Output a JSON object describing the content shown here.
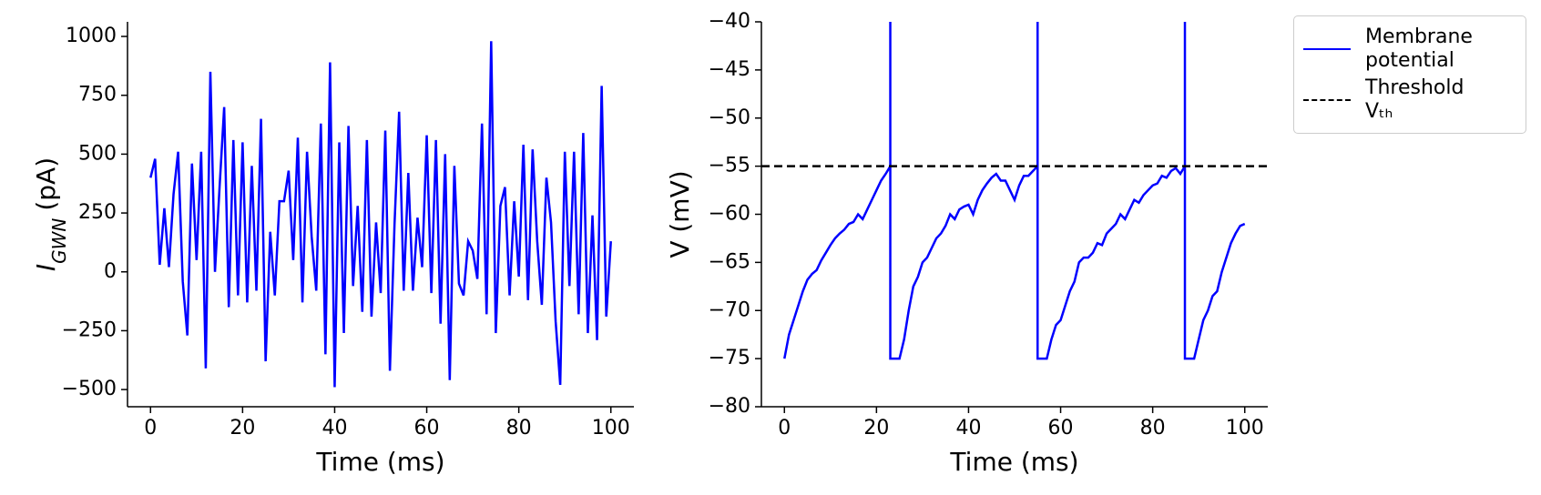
{
  "chart_data": [
    {
      "type": "line",
      "xlabel": "Time (ms)",
      "ylabel": [
        "I",
        "GWN",
        "(pA)"
      ],
      "xlim": [
        -5,
        105
      ],
      "ylim": [
        -573,
        1062
      ],
      "xticks": [
        0,
        20,
        40,
        60,
        80,
        100
      ],
      "yticks": [
        {
          "value": -500,
          "label": "−500"
        },
        {
          "value": -250,
          "label": "−250"
        },
        0,
        250,
        500,
        750,
        1000
      ],
      "x": [
        0,
        1,
        2,
        3,
        4,
        5,
        6,
        7,
        8,
        9,
        10,
        11,
        12,
        13,
        14,
        15,
        16,
        17,
        18,
        19,
        20,
        21,
        22,
        23,
        24,
        25,
        26,
        27,
        28,
        29,
        30,
        31,
        32,
        33,
        34,
        35,
        36,
        37,
        38,
        39,
        40,
        41,
        42,
        43,
        44,
        45,
        46,
        47,
        48,
        49,
        50,
        51,
        52,
        53,
        54,
        55,
        56,
        57,
        58,
        59,
        60,
        61,
        62,
        63,
        64,
        65,
        66,
        67,
        68,
        69,
        70,
        71,
        72,
        73,
        74,
        75,
        76,
        77,
        78,
        79,
        80,
        81,
        82,
        83,
        84,
        85,
        86,
        87,
        88,
        89,
        90,
        91,
        92,
        93,
        94,
        95,
        96,
        97,
        98,
        99,
        100
      ],
      "series": [
        {
          "color": "#0000ff",
          "values": [
            400,
            480,
            30,
            270,
            20,
            330,
            510,
            -40,
            -270,
            460,
            50,
            510,
            -410,
            850,
            0,
            360,
            700,
            -150,
            560,
            -100,
            550,
            -130,
            450,
            -80,
            650,
            -380,
            170,
            -100,
            300,
            300,
            430,
            50,
            570,
            -130,
            510,
            150,
            -80,
            630,
            -350,
            890,
            -490,
            550,
            -260,
            620,
            -60,
            280,
            -170,
            560,
            -190,
            210,
            -90,
            600,
            -420,
            200,
            680,
            -80,
            420,
            -80,
            230,
            20,
            580,
            -90,
            560,
            -220,
            500,
            -460,
            450,
            -50,
            -100,
            130,
            90,
            -30,
            630,
            -180,
            980,
            -260,
            280,
            360,
            -100,
            300,
            -20,
            540,
            -120,
            520,
            130,
            -140,
            400,
            210,
            -210,
            -480,
            510,
            -60,
            510,
            -180,
            590,
            -260,
            240,
            -290,
            790,
            -190,
            130
          ]
        }
      ]
    },
    {
      "type": "line",
      "xlabel": "Time (ms)",
      "ylabel": [
        "V (mV)"
      ],
      "xlim": [
        -5,
        105
      ],
      "ylim": [
        -80,
        -40
      ],
      "xticks": [
        0,
        20,
        40,
        60,
        80,
        100
      ],
      "yticks": [
        {
          "value": -80,
          "label": "−80"
        },
        {
          "value": -75,
          "label": "−75"
        },
        {
          "value": -70,
          "label": "−70"
        },
        {
          "value": -65,
          "label": "−65"
        },
        {
          "value": -60,
          "label": "−60"
        },
        {
          "value": -55,
          "label": "−55"
        },
        {
          "value": -50,
          "label": "−50"
        },
        {
          "value": -45,
          "label": "−45"
        },
        {
          "value": -40,
          "label": "−40"
        }
      ],
      "legend": "outside upper right",
      "series": [
        {
          "name": "Membrane potential",
          "color": "#0000ff",
          "dash": "solid",
          "x": [
            0,
            1,
            2,
            3,
            4,
            5,
            6,
            7,
            8,
            9,
            10,
            11,
            12,
            13,
            14,
            15,
            16,
            17,
            18,
            19,
            20,
            21,
            22,
            23,
            23,
            23,
            24,
            25,
            26,
            27,
            28,
            29,
            30,
            31,
            32,
            33,
            34,
            35,
            36,
            37,
            38,
            39,
            40,
            41,
            42,
            43,
            44,
            45,
            46,
            47,
            48,
            49,
            50,
            51,
            52,
            53,
            54,
            55,
            55,
            55,
            56,
            57,
            58,
            59,
            60,
            61,
            62,
            63,
            64,
            65,
            66,
            67,
            68,
            69,
            70,
            71,
            72,
            73,
            74,
            75,
            76,
            77,
            78,
            79,
            80,
            81,
            82,
            83,
            84,
            85,
            86,
            87,
            87,
            87,
            88,
            89,
            90,
            91,
            92,
            93,
            94,
            95,
            96,
            97,
            98,
            99,
            100
          ],
          "values": [
            -75,
            -72.5,
            -71,
            -69.5,
            -68,
            -66.8,
            -66.2,
            -65.8,
            -64.8,
            -64,
            -63.2,
            -62.5,
            -62,
            -61.6,
            -61,
            -60.8,
            -60,
            -60.5,
            -59.5,
            -58.5,
            -57.5,
            -56.5,
            -55.8,
            -55,
            -40,
            -75,
            -75,
            -75,
            -73,
            -70,
            -67.5,
            -66.5,
            -65,
            -64.5,
            -63.5,
            -62.5,
            -62,
            -61.2,
            -60,
            -60.5,
            -59.5,
            -59.2,
            -59,
            -60,
            -58.5,
            -57.5,
            -56.8,
            -56.2,
            -55.8,
            -56.5,
            -56.5,
            -57.5,
            -58.5,
            -57,
            -56,
            -56,
            -55.5,
            -55,
            -40,
            -75,
            -75,
            -75,
            -73,
            -71.5,
            -71,
            -69.5,
            -68,
            -67,
            -65,
            -64.5,
            -64.5,
            -64,
            -63,
            -63.2,
            -62,
            -61.5,
            -61,
            -60,
            -60.5,
            -59.5,
            -58.5,
            -58.8,
            -58,
            -57.5,
            -57,
            -56.8,
            -56,
            -56.2,
            -55.5,
            -55.2,
            -55.8,
            -55,
            -40,
            -75,
            -75,
            -75,
            -73,
            -71,
            -70,
            -68.5,
            -68,
            -66,
            -64.5,
            -63,
            -62,
            -61.2,
            -61
          ]
        },
        {
          "name": "Threshold Vₜₕ",
          "color": "#000000",
          "dash": "dashed",
          "x": [
            -5,
            105
          ],
          "values": [
            -55,
            -55
          ]
        }
      ]
    }
  ]
}
